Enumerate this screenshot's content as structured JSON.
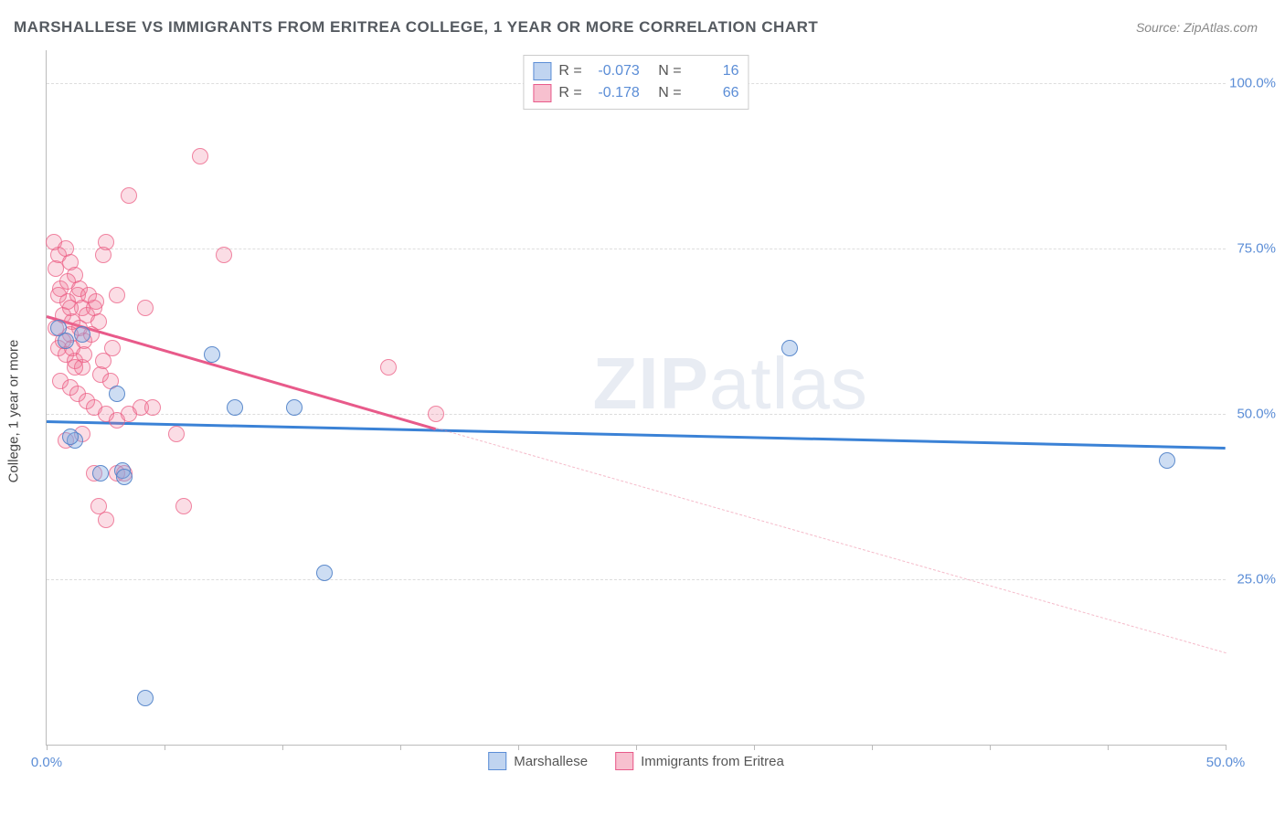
{
  "header": {
    "title": "MARSHALLESE VS IMMIGRANTS FROM ERITREA COLLEGE, 1 YEAR OR MORE CORRELATION CHART",
    "source": "Source: ZipAtlas.com"
  },
  "chart": {
    "type": "scatter",
    "ylabel": "College, 1 year or more",
    "xlim": [
      0,
      50
    ],
    "ylim": [
      0,
      105
    ],
    "xtick_label_left": "0.0%",
    "xtick_label_right": "50.0%",
    "xtick_positions": [
      0,
      5,
      10,
      15,
      20,
      25,
      30,
      35,
      40,
      45,
      50
    ],
    "yticks": [
      {
        "v": 25,
        "label": "25.0%"
      },
      {
        "v": 50,
        "label": "50.0%"
      },
      {
        "v": 75,
        "label": "75.0%"
      },
      {
        "v": 100,
        "label": "100.0%"
      }
    ],
    "background_color": "#ffffff",
    "grid_color": "#dddddd",
    "axis_color": "#bbbbbb",
    "tick_label_color": "#5b8dd6",
    "watermark": "ZIPatlas",
    "series": {
      "blue": {
        "label": "Marshallese",
        "color_fill": "rgba(130,170,225,0.4)",
        "color_stroke": "#5082c8",
        "R": "-0.073",
        "N": "16",
        "trend": {
          "x1": 0,
          "y1": 49,
          "x2": 50,
          "y2": 45,
          "color": "#3b82d6"
        },
        "points": [
          {
            "x": 0.5,
            "y": 63
          },
          {
            "x": 0.8,
            "y": 61
          },
          {
            "x": 1.5,
            "y": 62
          },
          {
            "x": 1.2,
            "y": 46
          },
          {
            "x": 1.0,
            "y": 46.5
          },
          {
            "x": 2.3,
            "y": 41
          },
          {
            "x": 3.0,
            "y": 53
          },
          {
            "x": 3.2,
            "y": 41.5
          },
          {
            "x": 3.3,
            "y": 40.5
          },
          {
            "x": 4.2,
            "y": 7
          },
          {
            "x": 7.0,
            "y": 59
          },
          {
            "x": 8.0,
            "y": 51
          },
          {
            "x": 10.5,
            "y": 51
          },
          {
            "x": 11.8,
            "y": 26
          },
          {
            "x": 31.5,
            "y": 60
          },
          {
            "x": 47.5,
            "y": 43
          }
        ]
      },
      "pink": {
        "label": "Immigrants from Eritrea",
        "color_fill": "rgba(240,120,150,0.25)",
        "color_stroke": "#eb5a82",
        "R": "-0.178",
        "N": "66",
        "trend_solid": {
          "x1": 0,
          "y1": 65,
          "x2": 16.5,
          "y2": 48,
          "color": "#e85a8a"
        },
        "trend_dashed": {
          "x1": 16.5,
          "y1": 48,
          "x2": 50,
          "y2": 14
        },
        "points": [
          {
            "x": 0.3,
            "y": 76
          },
          {
            "x": 0.5,
            "y": 74
          },
          {
            "x": 0.4,
            "y": 72
          },
          {
            "x": 0.8,
            "y": 75
          },
          {
            "x": 1.0,
            "y": 73
          },
          {
            "x": 1.2,
            "y": 71
          },
          {
            "x": 0.6,
            "y": 69
          },
          {
            "x": 0.9,
            "y": 67
          },
          {
            "x": 1.3,
            "y": 68
          },
          {
            "x": 1.5,
            "y": 66
          },
          {
            "x": 0.7,
            "y": 65
          },
          {
            "x": 1.1,
            "y": 64
          },
          {
            "x": 1.4,
            "y": 63
          },
          {
            "x": 1.7,
            "y": 65
          },
          {
            "x": 1.0,
            "y": 62
          },
          {
            "x": 1.6,
            "y": 61
          },
          {
            "x": 0.5,
            "y": 60
          },
          {
            "x": 0.8,
            "y": 59
          },
          {
            "x": 1.2,
            "y": 58
          },
          {
            "x": 1.5,
            "y": 57
          },
          {
            "x": 2.0,
            "y": 66
          },
          {
            "x": 2.2,
            "y": 64
          },
          {
            "x": 2.5,
            "y": 76
          },
          {
            "x": 2.4,
            "y": 74
          },
          {
            "x": 3.0,
            "y": 68
          },
          {
            "x": 2.8,
            "y": 60
          },
          {
            "x": 0.6,
            "y": 55
          },
          {
            "x": 1.0,
            "y": 54
          },
          {
            "x": 1.3,
            "y": 53
          },
          {
            "x": 1.7,
            "y": 52
          },
          {
            "x": 2.0,
            "y": 51
          },
          {
            "x": 2.5,
            "y": 50
          },
          {
            "x": 3.0,
            "y": 49
          },
          {
            "x": 3.5,
            "y": 50
          },
          {
            "x": 4.0,
            "y": 51
          },
          {
            "x": 1.5,
            "y": 47
          },
          {
            "x": 0.8,
            "y": 46
          },
          {
            "x": 1.2,
            "y": 57
          },
          {
            "x": 2.3,
            "y": 56
          },
          {
            "x": 2.7,
            "y": 55
          },
          {
            "x": 2.0,
            "y": 41
          },
          {
            "x": 3.0,
            "y": 41
          },
          {
            "x": 2.2,
            "y": 36
          },
          {
            "x": 2.5,
            "y": 34
          },
          {
            "x": 3.3,
            "y": 41
          },
          {
            "x": 4.5,
            "y": 51
          },
          {
            "x": 5.5,
            "y": 47
          },
          {
            "x": 5.8,
            "y": 36
          },
          {
            "x": 6.5,
            "y": 89
          },
          {
            "x": 3.5,
            "y": 83
          },
          {
            "x": 7.5,
            "y": 74
          },
          {
            "x": 4.2,
            "y": 66
          },
          {
            "x": 14.5,
            "y": 57
          },
          {
            "x": 16.5,
            "y": 50
          },
          {
            "x": 0.4,
            "y": 63
          },
          {
            "x": 0.7,
            "y": 61
          },
          {
            "x": 1.1,
            "y": 60
          },
          {
            "x": 1.9,
            "y": 62
          },
          {
            "x": 0.5,
            "y": 68
          },
          {
            "x": 0.9,
            "y": 70
          },
          {
            "x": 1.4,
            "y": 69
          },
          {
            "x": 1.8,
            "y": 68
          },
          {
            "x": 2.1,
            "y": 67
          },
          {
            "x": 1.6,
            "y": 59
          },
          {
            "x": 2.4,
            "y": 58
          },
          {
            "x": 1.0,
            "y": 66
          }
        ]
      }
    }
  },
  "legend_top": {
    "rows": [
      {
        "swatch": "blue",
        "R_label": "R =",
        "R_val": "-0.073",
        "N_label": "N =",
        "N_val": "16"
      },
      {
        "swatch": "pink",
        "R_label": "R =",
        "R_val": "-0.178",
        "N_label": "N =",
        "N_val": "66"
      }
    ]
  },
  "legend_bottom": {
    "items": [
      {
        "swatch": "blue",
        "label": "Marshallese"
      },
      {
        "swatch": "pink",
        "label": "Immigrants from Eritrea"
      }
    ]
  }
}
